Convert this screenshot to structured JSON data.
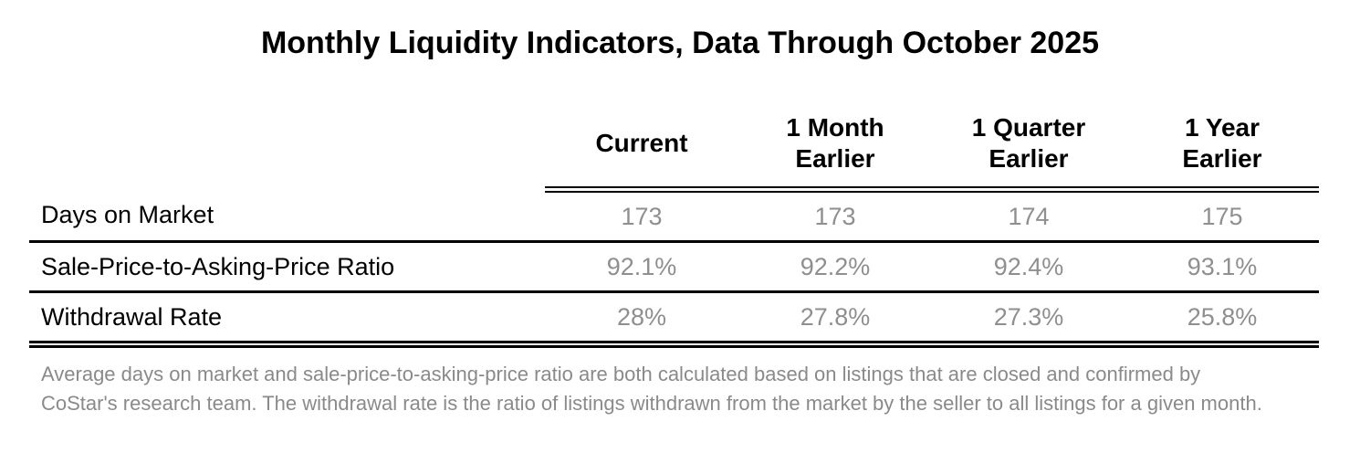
{
  "title": "Monthly Liquidity Indicators, Data Through October 2025",
  "table": {
    "columns": [
      "Current",
      "1 Month\nEarlier",
      "1 Quarter\nEarlier",
      "1 Year\nEarlier"
    ],
    "rows": [
      {
        "label": "Days on Market",
        "values": [
          "173",
          "173",
          "174",
          "175"
        ]
      },
      {
        "label": "Sale-Price-to-Asking-Price Ratio",
        "values": [
          "92.1%",
          "92.2%",
          "92.4%",
          "93.1%"
        ]
      },
      {
        "label": "Withdrawal Rate",
        "values": [
          "28%",
          "27.8%",
          "27.3%",
          "25.8%"
        ]
      }
    ]
  },
  "footnote": "Average days on market and sale-price-to-asking-price ratio are both calculated based on listings that are closed and confirmed by CoStar's research team. The withdrawal rate is the ratio of listings withdrawn from the market by the seller to all listings for a given month.",
  "colors": {
    "heading_text": "#000000",
    "value_gray": "#8f8f8f",
    "footnote_gray": "#8a8a8a",
    "rule_black": "#000000",
    "background": "#ffffff"
  },
  "chart_data": {
    "type": "table",
    "title": "Monthly Liquidity Indicators, Data Through October 2025",
    "columns": [
      "Current",
      "1 Month Earlier",
      "1 Quarter Earlier",
      "1 Year Earlier"
    ],
    "rows": [
      {
        "label": "Days on Market",
        "values": [
          173,
          173,
          174,
          175
        ],
        "unit": "days"
      },
      {
        "label": "Sale-Price-to-Asking-Price Ratio",
        "values": [
          92.1,
          92.2,
          92.4,
          93.1
        ],
        "unit": "%"
      },
      {
        "label": "Withdrawal Rate",
        "values": [
          28,
          27.8,
          27.3,
          25.8
        ],
        "unit": "%"
      }
    ],
    "note": "Average days on market and sale-price-to-asking-price ratio are both calculated based on listings that are closed and confirmed by CoStar's research team. The withdrawal rate is the ratio of listings withdrawn from the market by the seller to all listings for a given month."
  }
}
